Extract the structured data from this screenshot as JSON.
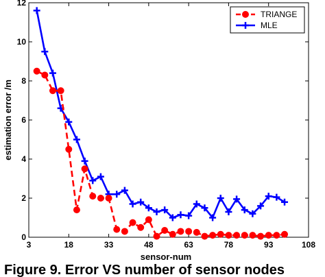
{
  "chart_data": {
    "type": "line",
    "xlabel": "sensor-num",
    "ylabel": "estimation error  /m",
    "xlim": [
      3,
      108
    ],
    "ylim": [
      0,
      12
    ],
    "xticks": [
      3,
      18,
      33,
      48,
      63,
      78,
      93,
      108
    ],
    "yticks": [
      0,
      2,
      4,
      6,
      8,
      10,
      12
    ],
    "grid": false,
    "legend_position": "top-right",
    "series": [
      {
        "name": "TRIANGE",
        "color": "#ff0000",
        "marker": "circle",
        "line_style": "dashed",
        "x": [
          6,
          9,
          12,
          15,
          18,
          21,
          24,
          27,
          30,
          33,
          36,
          39,
          42,
          45,
          48,
          51,
          54,
          57,
          60,
          63,
          66,
          69,
          72,
          75,
          78,
          81,
          84,
          87,
          90,
          93,
          96,
          99
        ],
        "y": [
          8.5,
          8.3,
          7.5,
          7.5,
          4.5,
          1.4,
          3.5,
          2.1,
          2.0,
          2.0,
          0.4,
          0.3,
          0.75,
          0.5,
          0.9,
          0.05,
          0.35,
          0.15,
          0.3,
          0.3,
          0.25,
          0.05,
          0.1,
          0.15,
          0.1,
          0.1,
          0.1,
          0.1,
          0.05,
          0.1,
          0.1,
          0.15
        ]
      },
      {
        "name": "MLE",
        "color": "#0000ff",
        "marker": "plus",
        "line_style": "solid",
        "x": [
          6,
          9,
          12,
          15,
          18,
          21,
          24,
          27,
          30,
          33,
          36,
          39,
          42,
          45,
          48,
          51,
          54,
          57,
          60,
          63,
          66,
          69,
          72,
          75,
          78,
          81,
          84,
          87,
          90,
          93,
          96,
          99
        ],
        "y": [
          11.6,
          9.5,
          8.4,
          6.6,
          5.9,
          5.0,
          3.9,
          2.9,
          3.1,
          2.2,
          2.2,
          2.4,
          1.7,
          1.8,
          1.5,
          1.3,
          1.4,
          1.0,
          1.15,
          1.1,
          1.7,
          1.5,
          1.0,
          2.0,
          1.3,
          1.95,
          1.4,
          1.2,
          1.6,
          2.1,
          2.05,
          1.8
        ]
      }
    ]
  },
  "caption": {
    "text": "Figure 9. Error VS number of sensor nodes"
  }
}
